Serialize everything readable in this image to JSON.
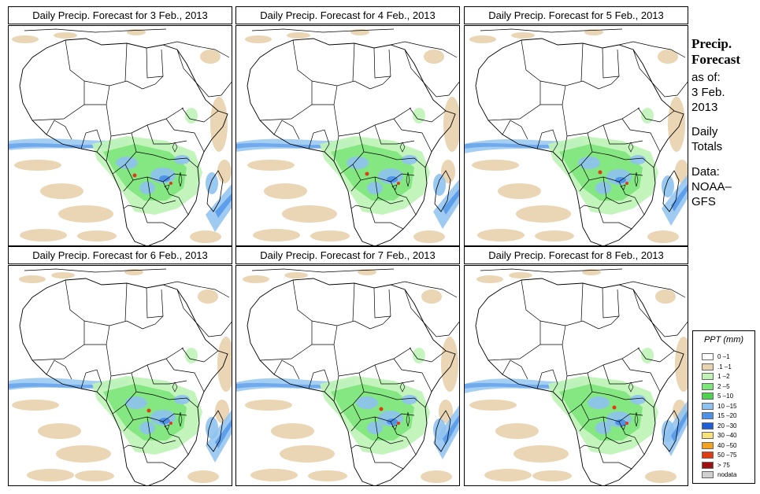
{
  "panels": [
    {
      "title": "Daily Precip. Forecast for  3 Feb., 2013",
      "variant": 0
    },
    {
      "title": "Daily Precip. Forecast for  4 Feb., 2013",
      "variant": 1
    },
    {
      "title": "Daily Precip. Forecast for  5 Feb., 2013",
      "variant": 2
    },
    {
      "title": "Daily Precip. Forecast for  6 Feb., 2013",
      "variant": 3
    },
    {
      "title": "Daily Precip. Forecast for  7 Feb., 2013",
      "variant": 4
    },
    {
      "title": "Daily Precip. Forecast for  8 Feb., 2013",
      "variant": 5
    }
  ],
  "sidebar": {
    "heading_line1": "Precip.",
    "heading_line2": "Forecast",
    "as_of": "as of:",
    "date_line1": "3 Feb.",
    "date_line2": "2013",
    "totals_line1": "Daily",
    "totals_line2": "Totals",
    "data_line1": "Data:",
    "data_line2": "NOAA–",
    "data_line3": "GFS"
  },
  "legend": {
    "title": "PPT (mm)",
    "items": [
      {
        "label": "0 –1",
        "color": "#ffffff"
      },
      {
        "label": ".1 –1",
        "color": "#e9d3b0"
      },
      {
        "label": "1 –2",
        "color": "#bff3b8"
      },
      {
        "label": "2 –5",
        "color": "#7ee57a"
      },
      {
        "label": "5 –10",
        "color": "#4fd24f"
      },
      {
        "label": "10 –15",
        "color": "#8ec2f0"
      },
      {
        "label": "15 –20",
        "color": "#4e93e8"
      },
      {
        "label": "20 –30",
        "color": "#1f5fd6"
      },
      {
        "label": "30 –40",
        "color": "#f7e27a"
      },
      {
        "label": "40 –50",
        "color": "#f5a21f"
      },
      {
        "label": "50 –75",
        "color": "#e03c14"
      },
      {
        "label": "> 75",
        "color": "#9e1111"
      },
      {
        "label": "nodata",
        "color": "#d0d0d0"
      }
    ]
  },
  "colors": {
    "dry": "#e9d3b0",
    "light": "#bff3b8",
    "green": "#7ee57a",
    "lightblue": "#8ec2f0",
    "blue": "#4e93e8",
    "red": "#e03c14"
  }
}
